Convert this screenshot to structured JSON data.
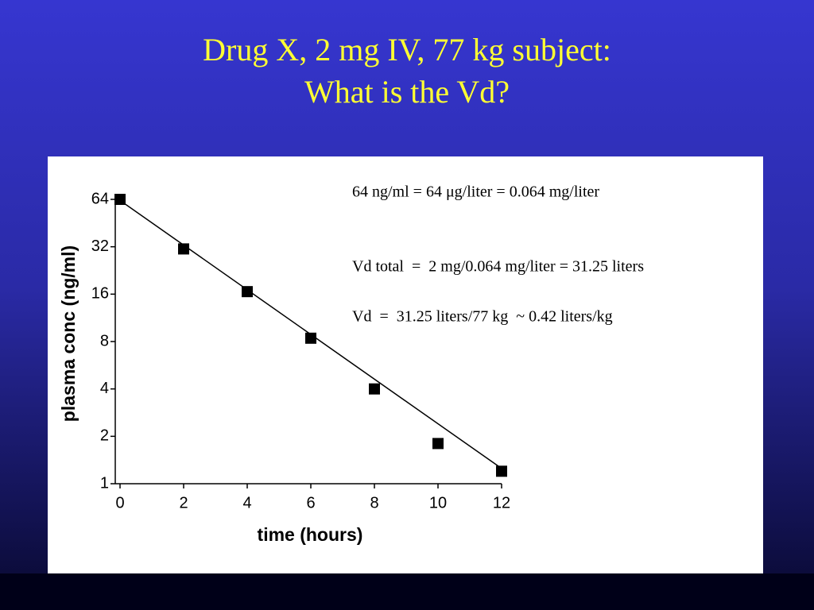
{
  "slide_title": [
    "Drug X, 2 mg IV, 77 kg subject:",
    "What is the Vd?"
  ],
  "chart_data": {
    "type": "scatter",
    "xlabel": "time (hours)",
    "ylabel": "plasma conc (ng/ml)",
    "xlim": [
      0,
      12
    ],
    "xticks": [
      0,
      2,
      4,
      6,
      8,
      10,
      12
    ],
    "ylim": [
      1,
      64
    ],
    "yticks": [
      1,
      2,
      4,
      8,
      16,
      32,
      64
    ],
    "log_y": true,
    "log_base": 2,
    "series": [
      {
        "color": "#000000",
        "x": [
          0,
          2,
          4,
          6,
          8,
          10,
          12
        ],
        "values": [
          64,
          31,
          16.6,
          8.4,
          4,
          1.8,
          1.2
        ]
      }
    ],
    "fit_line": {
      "color": "#000000",
      "x": [
        0,
        12
      ],
      "values": [
        63,
        1.25
      ]
    },
    "annotations": [
      "64 ng/ml = 64 μg/liter = 0.064 mg/liter",
      "Vd total  =  2 mg/0.064 mg/liter = 31.25 liters",
      "Vd  =  31.25 liters/77 kg  ~ 0.42 liters/kg"
    ]
  }
}
